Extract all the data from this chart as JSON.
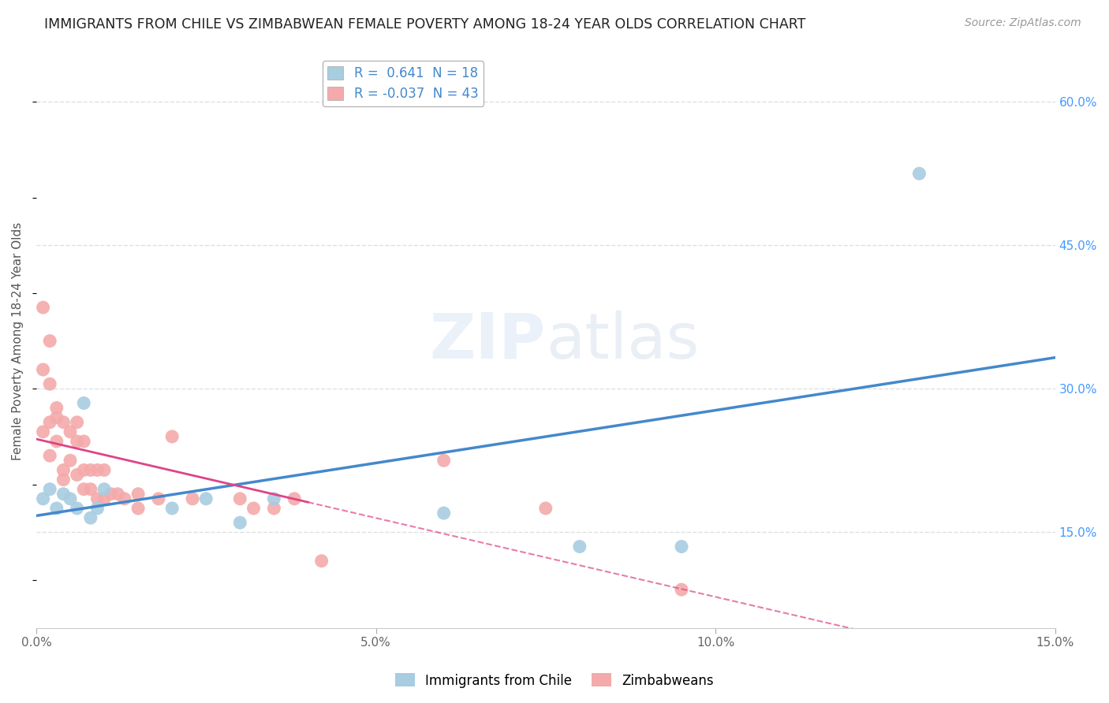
{
  "title": "IMMIGRANTS FROM CHILE VS ZIMBABWEAN FEMALE POVERTY AMONG 18-24 YEAR OLDS CORRELATION CHART",
  "source": "Source: ZipAtlas.com",
  "ylabel": "Female Poverty Among 18-24 Year Olds",
  "xlim": [
    0.0,
    0.15
  ],
  "ylim": [
    0.05,
    0.65
  ],
  "xtick_labels": [
    "0.0%",
    "5.0%",
    "10.0%",
    "15.0%"
  ],
  "xtick_vals": [
    0.0,
    0.05,
    0.1,
    0.15
  ],
  "ytick_labels": [
    "15.0%",
    "30.0%",
    "45.0%",
    "60.0%"
  ],
  "ytick_vals": [
    0.15,
    0.3,
    0.45,
    0.6
  ],
  "legend_r1": "R =  0.641  N = 18",
  "legend_r2": "R = -0.037  N = 43",
  "legend_label1": "Immigrants from Chile",
  "legend_label2": "Zimbabweans",
  "color_chile": "#a8cce0",
  "color_zimb": "#f4aaaa",
  "regression_color_chile": "#4488cc",
  "regression_color_zimb": "#dd4488",
  "background_color": "#ffffff",
  "grid_color": "#e0e0e0",
  "chile_x": [
    0.001,
    0.002,
    0.003,
    0.004,
    0.005,
    0.006,
    0.007,
    0.008,
    0.009,
    0.01,
    0.02,
    0.025,
    0.03,
    0.035,
    0.06,
    0.08,
    0.095,
    0.13
  ],
  "chile_y": [
    0.185,
    0.195,
    0.175,
    0.19,
    0.185,
    0.175,
    0.285,
    0.165,
    0.175,
    0.195,
    0.175,
    0.185,
    0.16,
    0.185,
    0.17,
    0.135,
    0.135,
    0.525
  ],
  "zimb_x": [
    0.001,
    0.001,
    0.001,
    0.002,
    0.002,
    0.002,
    0.002,
    0.003,
    0.003,
    0.003,
    0.004,
    0.004,
    0.004,
    0.005,
    0.005,
    0.006,
    0.006,
    0.006,
    0.007,
    0.007,
    0.007,
    0.008,
    0.008,
    0.009,
    0.009,
    0.01,
    0.01,
    0.011,
    0.012,
    0.013,
    0.015,
    0.015,
    0.018,
    0.02,
    0.023,
    0.03,
    0.032,
    0.035,
    0.038,
    0.042,
    0.06,
    0.075,
    0.095
  ],
  "zimb_y": [
    0.385,
    0.32,
    0.255,
    0.35,
    0.305,
    0.265,
    0.23,
    0.28,
    0.27,
    0.245,
    0.265,
    0.215,
    0.205,
    0.255,
    0.225,
    0.265,
    0.245,
    0.21,
    0.245,
    0.215,
    0.195,
    0.215,
    0.195,
    0.215,
    0.185,
    0.215,
    0.185,
    0.19,
    0.19,
    0.185,
    0.19,
    0.175,
    0.185,
    0.25,
    0.185,
    0.185,
    0.175,
    0.175,
    0.185,
    0.12,
    0.225,
    0.175,
    0.09
  ]
}
